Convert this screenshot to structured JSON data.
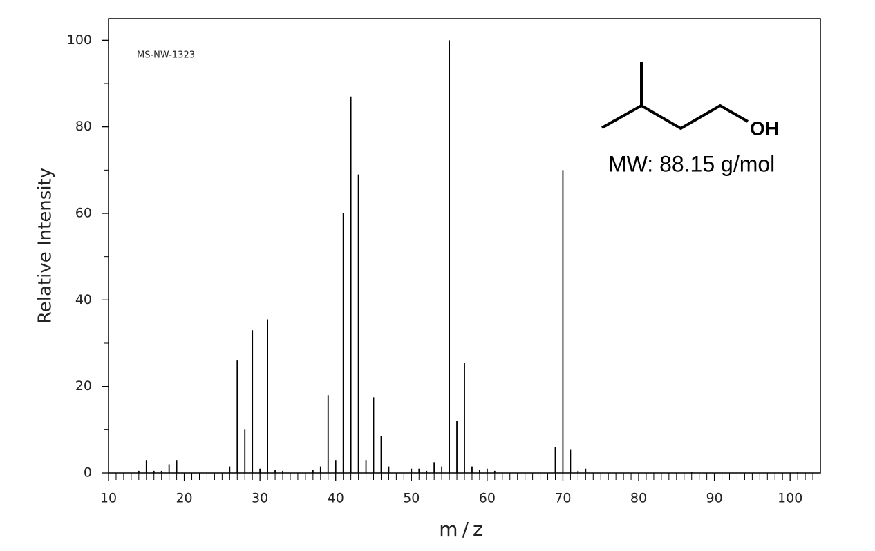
{
  "chart_data": {
    "type": "bar",
    "annotation": "MS-NW-1323",
    "xlabel": "m/z",
    "ylabel": "Relative Intensity",
    "structure_label": "OH",
    "mw_label": "MW: 88.15 g/mol",
    "color": "#000000",
    "x": [
      14,
      15,
      16,
      17,
      18,
      19,
      26,
      27,
      28,
      29,
      30,
      31,
      32,
      33,
      37,
      38,
      39,
      40,
      41,
      42,
      43,
      44,
      45,
      46,
      47,
      50,
      51,
      52,
      53,
      54,
      55,
      56,
      57,
      58,
      59,
      60,
      61,
      69,
      70,
      71,
      72,
      73,
      87,
      101
    ],
    "values": [
      0.5,
      3,
      0.5,
      0.5,
      2,
      3,
      1.5,
      26,
      10,
      33,
      1,
      35.5,
      0.7,
      0.5,
      0.7,
      1.5,
      18,
      3,
      60,
      87,
      69,
      3,
      17.5,
      8.5,
      1.5,
      1,
      1,
      0.5,
      2.5,
      1.5,
      100,
      12,
      25.5,
      1.5,
      0.7,
      1,
      0.5,
      6,
      70,
      5.5,
      0.5,
      1,
      0.3,
      0.3
    ],
    "xlim": [
      10,
      104
    ],
    "ylim": [
      0,
      105
    ],
    "xticks": [
      10,
      20,
      30,
      40,
      50,
      60,
      70,
      80,
      90,
      100
    ],
    "yticks": [
      0,
      20,
      40,
      60,
      80,
      100
    ],
    "xminorticks": [
      11,
      12,
      13,
      14,
      15,
      16,
      17,
      18,
      19,
      21,
      22,
      23,
      24,
      25,
      26,
      27,
      28,
      29,
      31,
      32,
      33,
      34,
      35,
      36,
      37,
      38,
      39,
      41,
      42,
      43,
      44,
      45,
      46,
      47,
      48,
      49,
      51,
      52,
      53,
      54,
      55,
      56,
      57,
      58,
      59,
      61,
      62,
      63,
      64,
      65,
      66,
      67,
      68,
      69,
      71,
      72,
      73,
      74,
      75,
      76,
      77,
      78,
      79,
      81,
      82,
      83,
      84,
      85,
      86,
      87,
      88,
      89,
      91,
      92,
      93,
      94,
      95,
      96,
      97,
      98,
      99,
      101,
      102,
      103
    ],
    "yminorticks": [
      10,
      30,
      50,
      70,
      90
    ]
  }
}
